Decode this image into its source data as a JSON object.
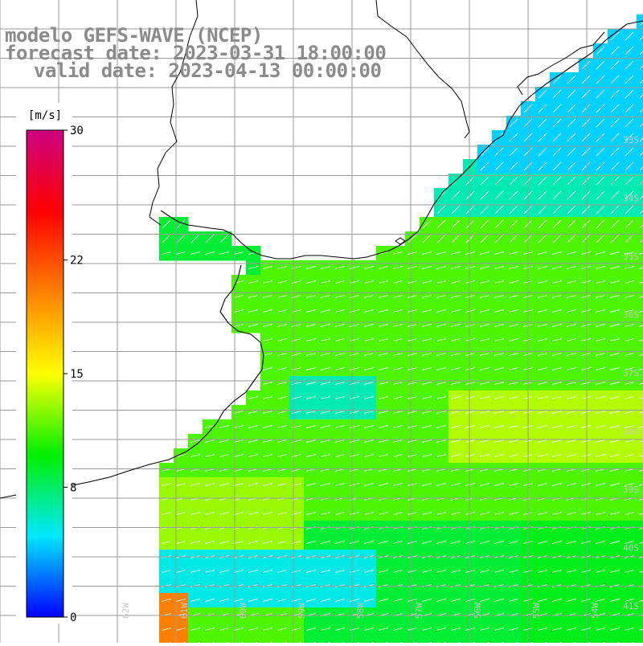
{
  "header": {
    "line1": "modelo GEFS-WAVE (NCEP)",
    "line2": "forecast date: 2023-03-31 18:00:00",
    "line3": "valid date: 2023-04-13 00:00:00"
  },
  "colorbar": {
    "unit": "[m/s]",
    "ticks": [
      "30",
      "22",
      "15",
      "8",
      "0"
    ],
    "stops": [
      "#0000ff",
      "#00e8ff",
      "#00f000",
      "#ffff00",
      "#ff8000",
      "#ff0000",
      "#cc0080"
    ]
  },
  "lat_labels": [
    "33S",
    "34S",
    "35S",
    "36S",
    "37S",
    "38S",
    "39S",
    "40S",
    "41S"
  ],
  "lon_labels": [
    "62W",
    "61W",
    "60W",
    "59W",
    "58W",
    "57W",
    "56W",
    "55W",
    "54W"
  ],
  "colors": {
    "grid": "#9a9a9a",
    "coast": "#000000",
    "arrow": "#ffffff",
    "title": "#8a8a8a",
    "axis_label": "#c8c8c8"
  }
}
